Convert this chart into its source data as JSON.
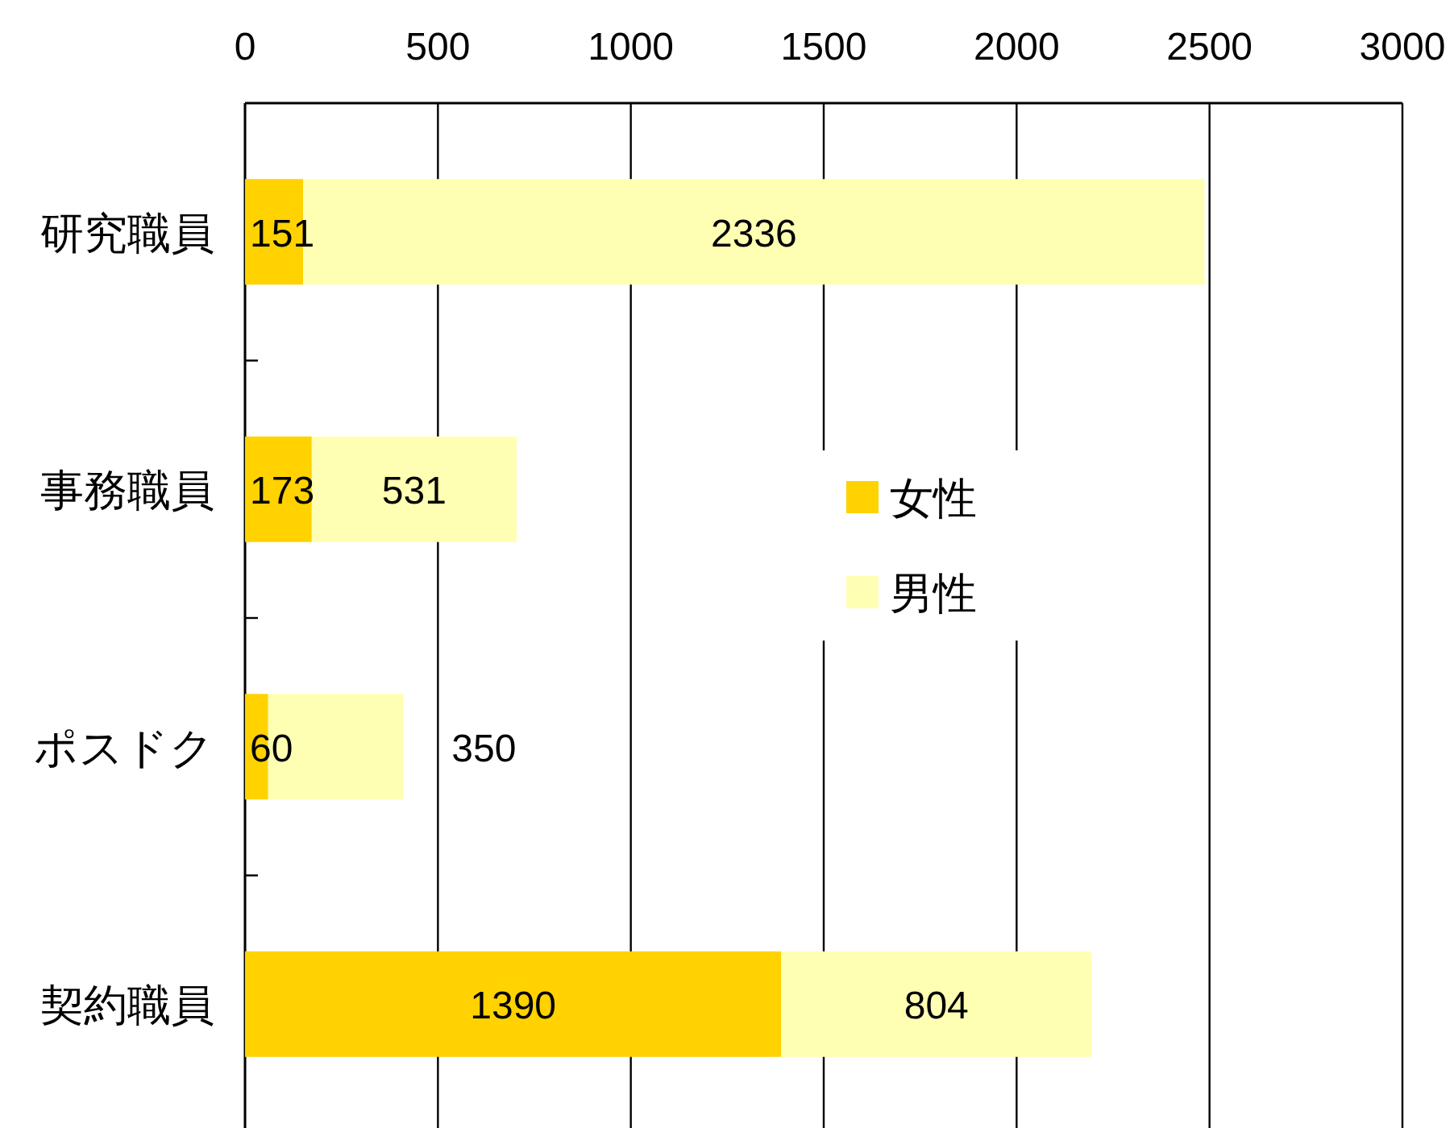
{
  "chart_data": {
    "type": "bar",
    "orientation": "horizontal",
    "stacked": true,
    "categories": [
      "研究職員",
      "事務職員",
      "ポスドク",
      "契約職員"
    ],
    "series": [
      {
        "name": "女性",
        "color": "#ffd200",
        "values": [
          151,
          173,
          60,
          1390
        ]
      },
      {
        "name": "男性",
        "color": "#ffffb3",
        "values": [
          2336,
          531,
          350,
          804
        ]
      }
    ],
    "xlim": [
      0,
      3000
    ],
    "xticks": [
      0,
      500,
      1000,
      1500,
      2000,
      2500,
      3000
    ],
    "grid": "x",
    "legend": "right",
    "data_labels": true
  }
}
